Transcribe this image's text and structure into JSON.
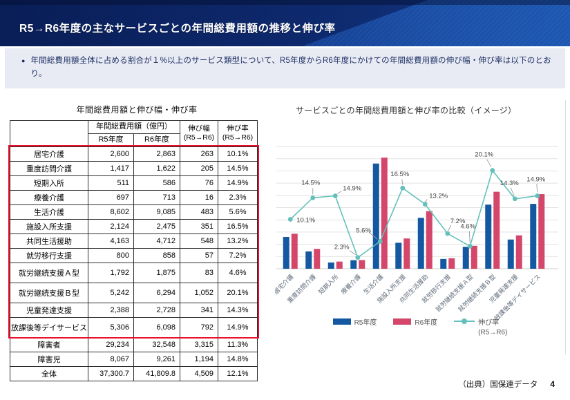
{
  "header": {
    "title": "R5→R6年度の主なサービスごとの年間総費用額の推移と伸び率"
  },
  "notice": {
    "bullet": "●",
    "text": "年間総費用額全体に占める割合が１%以上のサービス類型について、R5年度からR6年度にかけての年間総費用額の伸び幅・伸び率は以下のとおり。"
  },
  "table": {
    "title": "年間総費用額と伸び幅・伸び率",
    "group_header": "年間総費用額（億円）",
    "col_r5": "R5年度",
    "col_r6": "R6年度",
    "col_diff": "伸び幅",
    "col_rate": "伸び率",
    "col_range": "(R5→R6)",
    "rows": [
      {
        "name": "居宅介護",
        "r5": "2,600",
        "r6": "2,863",
        "diff": "263",
        "rate": "10.1%",
        "highlight": true,
        "tall": false
      },
      {
        "name": "重度訪問介護",
        "r5": "1,417",
        "r6": "1,622",
        "diff": "205",
        "rate": "14.5%",
        "highlight": true,
        "tall": false
      },
      {
        "name": "短期入所",
        "r5": "511",
        "r6": "586",
        "diff": "76",
        "rate": "14.9%",
        "highlight": true,
        "tall": false
      },
      {
        "name": "療養介護",
        "r5": "697",
        "r6": "713",
        "diff": "16",
        "rate": "2.3%",
        "highlight": true,
        "tall": false
      },
      {
        "name": "生活介護",
        "r5": "8,602",
        "r6": "9,085",
        "diff": "483",
        "rate": "5.6%",
        "highlight": true,
        "tall": false
      },
      {
        "name": "施設入所支援",
        "r5": "2,124",
        "r6": "2,475",
        "diff": "351",
        "rate": "16.5%",
        "highlight": true,
        "tall": false
      },
      {
        "name": "共同生活援助",
        "r5": "4,163",
        "r6": "4,712",
        "diff": "548",
        "rate": "13.2%",
        "highlight": true,
        "tall": false
      },
      {
        "name": "就労移行支援",
        "r5": "800",
        "r6": "858",
        "diff": "57",
        "rate": "7.2%",
        "highlight": true,
        "tall": false
      },
      {
        "name": "就労継続支援Ａ型",
        "r5": "1,792",
        "r6": "1,875",
        "diff": "83",
        "rate": "4.6%",
        "highlight": true,
        "tall": true
      },
      {
        "name": "就労継続支援Ｂ型",
        "r5": "5,242",
        "r6": "6,294",
        "diff": "1,052",
        "rate": "20.1%",
        "highlight": true,
        "tall": true
      },
      {
        "name": "児童発達支援",
        "r5": "2,388",
        "r6": "2,728",
        "diff": "341",
        "rate": "14.3%",
        "highlight": true,
        "tall": false
      },
      {
        "name": "放課後等デイサービス",
        "r5": "5,306",
        "r6": "6,098",
        "diff": "792",
        "rate": "14.9%",
        "highlight": true,
        "tall": true
      },
      {
        "name": "障害者",
        "r5": "29,234",
        "r6": "32,548",
        "diff": "3,315",
        "rate": "11.3%",
        "highlight": false,
        "tall": false
      },
      {
        "name": "障害児",
        "r5": "8,067",
        "r6": "9,261",
        "diff": "1,194",
        "rate": "14.8%",
        "highlight": false,
        "tall": false
      },
      {
        "name": "全体",
        "r5": "37,300.7",
        "r6": "41,809.8",
        "diff": "4,509",
        "rate": "12.1%",
        "highlight": false,
        "tall": false
      }
    ]
  },
  "chart_data": {
    "type": "combo-bar-line",
    "title": "サービスごとの年間総費用額と伸び率の比較（イメージ）",
    "categories": [
      "居宅介護",
      "重度訪問介護",
      "短期入所",
      "療養介護",
      "生活介護",
      "施設入所支援",
      "共同生活援助",
      "就労移行支援",
      "就労継続支援Ａ型",
      "就労継続支援Ｂ型",
      "児童発達支援",
      "放課後等デイサービス"
    ],
    "series": [
      {
        "name": "R5年度",
        "type": "bar",
        "color": "#1558a2",
        "values": [
          2600,
          1417,
          511,
          697,
          8602,
          2124,
          4163,
          800,
          1792,
          5242,
          2388,
          5306
        ]
      },
      {
        "name": "R6年度",
        "type": "bar",
        "color": "#d4476b",
        "values": [
          2863,
          1622,
          586,
          713,
          9085,
          2475,
          4712,
          858,
          1875,
          6294,
          2728,
          6098
        ]
      },
      {
        "name": "伸び率",
        "sub_label": "(R5→R6)",
        "type": "line",
        "color": "#63c0ba",
        "values": [
          10.1,
          14.5,
          14.9,
          2.3,
          5.6,
          16.5,
          13.2,
          7.2,
          4.6,
          20.1,
          14.3,
          14.9
        ],
        "labels": [
          "10.1%",
          "14.5%",
          "14.9%",
          "2.3%",
          "5.6%",
          "16.5%",
          "13.2%",
          "7.2%",
          "4.6%",
          "20.1%",
          "14.3%",
          "14.9%"
        ]
      }
    ],
    "y_primary": {
      "min": 0,
      "max": 10000,
      "grid_step": 1000,
      "axis_labels_visible": false
    },
    "y_secondary": {
      "min": 0,
      "max": 25,
      "axis_labels_visible": false
    },
    "grid": true,
    "legend_position": "bottom"
  },
  "footer": {
    "source": "（出典）国保連データ",
    "page": "4"
  },
  "colors": {
    "header_navy_dark": "#0c2468",
    "header_blue": "#1d57b2",
    "notice_bg": "#e9ebf4",
    "notice_text": "#1c2f63",
    "highlight_red": "#e8112d",
    "bar_r5_blue": "#1558a2",
    "bar_r6_red": "#d4476b",
    "line_teal": "#63c0ba",
    "gridline": "#e2e2e2"
  }
}
